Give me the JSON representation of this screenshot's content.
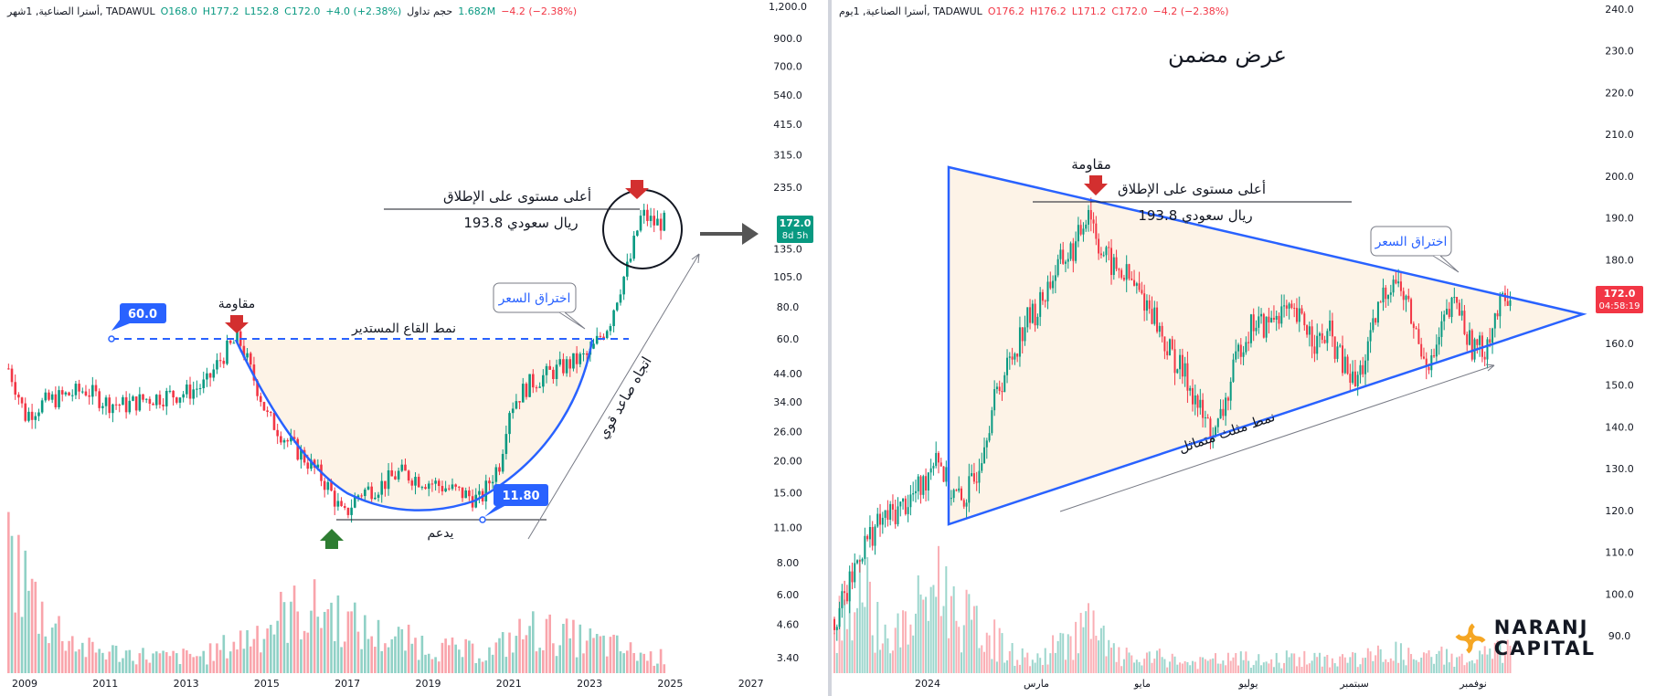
{
  "left": {
    "header": {
      "symbol": "أسترا الصناعية, 1شهر, TADAWUL",
      "open": "O168.0",
      "high": "H177.2",
      "low": "L152.8",
      "close": "C172.0",
      "change": "+4.0 (+2.38%)",
      "volume_label": "حجم تداول",
      "volume_value": "1.682M",
      "volume_change": "−4.2 (−2.38%)"
    },
    "price_badge": {
      "price": "172.0",
      "countdown": "8d 5h"
    },
    "annotations": {
      "resistance": "مقاومة",
      "pattern": "نمط القاع المستدير",
      "support": "يدعم",
      "breakout": "اختراق السعر",
      "trend": "اتجاه صاعد قوي",
      "ath_line1": "أعلى مستوى على الإطلاق",
      "ath_line2": "193.8 ريال سعودي",
      "level_high": "60.0",
      "level_low": "11.80"
    }
  },
  "right": {
    "header": {
      "symbol": "أسترا الصناعية, 1يوم, TADAWUL",
      "open": "O176.2",
      "high": "H176.2",
      "low": "L171.2",
      "close": "C172.0",
      "change": "−4.2 (−2.38%)"
    },
    "title": "عرض مضمن",
    "price_badge": {
      "price": "172.0",
      "countdown": "04:58:19"
    },
    "annotations": {
      "resistance": "مقاومة",
      "ath_line1": "أعلى مستوى على الإطلاق",
      "ath_line2": "193.8 ريال سعودي",
      "breakout": "اختراق السعر",
      "pattern": "نمط مثلث متماثل"
    }
  },
  "logo": {
    "line1": "NARANJ",
    "line2": "CAPITAL"
  },
  "colors": {
    "up": "#089981",
    "down": "#f23645",
    "pattern_line": "#2962ff",
    "fill": "#fdf3e7",
    "badge": "#089981",
    "badge_down": "#f23645"
  },
  "chart_data": [
    {
      "type": "candlestick",
      "scale": "log",
      "timeframe": "monthly",
      "x_ticks": [
        "2009",
        "2011",
        "2013",
        "2015",
        "2017",
        "2019",
        "2021",
        "2023",
        "2025",
        "2027"
      ],
      "y_ticks": [
        1200,
        900,
        700,
        540,
        415,
        315,
        235,
        135,
        105,
        80,
        60,
        44,
        34,
        26,
        20,
        15,
        11,
        8,
        6,
        4.6,
        3.4
      ],
      "y_tick_labels": [
        "1,200.0",
        "900.0",
        "700.0",
        "540.0",
        "415.0",
        "315.0",
        "235.0",
        "135.0",
        "105.0",
        "80.0",
        "60.0",
        "44.00",
        "34.00",
        "26.00",
        "20.00",
        "15.00",
        "11.00",
        "8.00",
        "6.00",
        "4.60",
        "3.40"
      ],
      "levels": {
        "resistance": 60.0,
        "support": 11.8,
        "all_time_high": 193.8,
        "last": 172.0
      },
      "series": [
        {
          "name": "price",
          "x": [
            2008.6,
            2009.0,
            2009.5,
            2010.0,
            2010.5,
            2011.0,
            2011.5,
            2012.0,
            2012.5,
            2013.0,
            2013.5,
            2014.0,
            2014.3,
            2014.6,
            2015.0,
            2015.5,
            2016.0,
            2016.5,
            2016.9,
            2017.3,
            2017.8,
            2018.3,
            2018.8,
            2019.3,
            2019.8,
            2020.3,
            2020.8,
            2021.0,
            2021.5,
            2022.0,
            2022.5,
            2023.0,
            2023.5,
            2024.0,
            2024.3,
            2024.6,
            2024.8
          ],
          "values": [
            46,
            30,
            34,
            36,
            38,
            34,
            33,
            35,
            36,
            37,
            40,
            54,
            60,
            45,
            30,
            24,
            20,
            16,
            12,
            15,
            16,
            18,
            17,
            16,
            15,
            14,
            20,
            32,
            40,
            44,
            48,
            52,
            70,
            120,
            185,
            170,
            172
          ]
        },
        {
          "name": "volume",
          "x": [
            2008.6,
            2009.5,
            2010.5,
            2011.5,
            2012.5,
            2013.5,
            2014.5,
            2015.5,
            2016.5,
            2017.5,
            2018.5,
            2019.5,
            2020.5,
            2021.5,
            2022.5,
            2023.5,
            2024.5
          ],
          "values": [
            62,
            28,
            12,
            10,
            8,
            9,
            18,
            30,
            32,
            20,
            16,
            12,
            10,
            22,
            18,
            14,
            8
          ]
        }
      ]
    },
    {
      "type": "candlestick",
      "scale": "linear",
      "timeframe": "daily",
      "x_ticks": [
        "2024",
        "مارس",
        "مايو",
        "يوليو",
        "سبتمبر",
        "نوفمبر"
      ],
      "y_ticks": [
        240,
        230,
        220,
        210,
        200,
        190,
        180,
        170,
        160,
        150,
        140,
        130,
        120,
        110,
        100,
        90
      ],
      "y_tick_labels": [
        "240.0",
        "230.0",
        "220.0",
        "210.0",
        "200.0",
        "190.0",
        "180.0",
        "170.0",
        "160.0",
        "150.0",
        "140.0",
        "130.0",
        "120.0",
        "110.0",
        "100.0",
        "90.0"
      ],
      "levels": {
        "all_time_high": 193.8,
        "last": 172.0
      },
      "series": [
        {
          "name": "price",
          "x": [
            0,
            5,
            10,
            15,
            20,
            25,
            30,
            35,
            40,
            45,
            50,
            55,
            60,
            65,
            70,
            75,
            80,
            85,
            90,
            95,
            100,
            105,
            110,
            115,
            120,
            125,
            130,
            135,
            140,
            145,
            150,
            155,
            160,
            165,
            170,
            175,
            180,
            185,
            190,
            195,
            200,
            205,
            210,
            215,
            220,
            225,
            230,
            235,
            240,
            245,
            250,
            255,
            260,
            265
          ],
          "values": [
            94,
            100,
            110,
            115,
            118,
            120,
            123,
            126,
            135,
            125,
            122,
            127,
            140,
            150,
            157,
            165,
            168,
            175,
            180,
            183,
            193,
            182,
            178,
            176,
            172,
            168,
            160,
            155,
            150,
            142,
            138,
            148,
            160,
            165,
            164,
            168,
            166,
            165,
            160,
            162,
            155,
            150,
            158,
            170,
            176,
            170,
            160,
            155,
            165,
            170,
            160,
            158,
            166,
            172
          ]
        },
        {
          "name": "volume",
          "x": [
            0,
            10,
            20,
            30,
            40,
            50,
            60,
            70,
            80,
            90,
            100,
            110,
            120,
            130,
            140,
            150,
            160,
            170,
            180,
            190,
            200,
            210,
            220,
            230,
            240,
            250,
            260
          ],
          "values": [
            30,
            60,
            22,
            30,
            60,
            35,
            25,
            12,
            8,
            20,
            30,
            12,
            8,
            10,
            6,
            8,
            9,
            7,
            10,
            8,
            9,
            10,
            14,
            8,
            12,
            7,
            14
          ]
        }
      ]
    }
  ]
}
